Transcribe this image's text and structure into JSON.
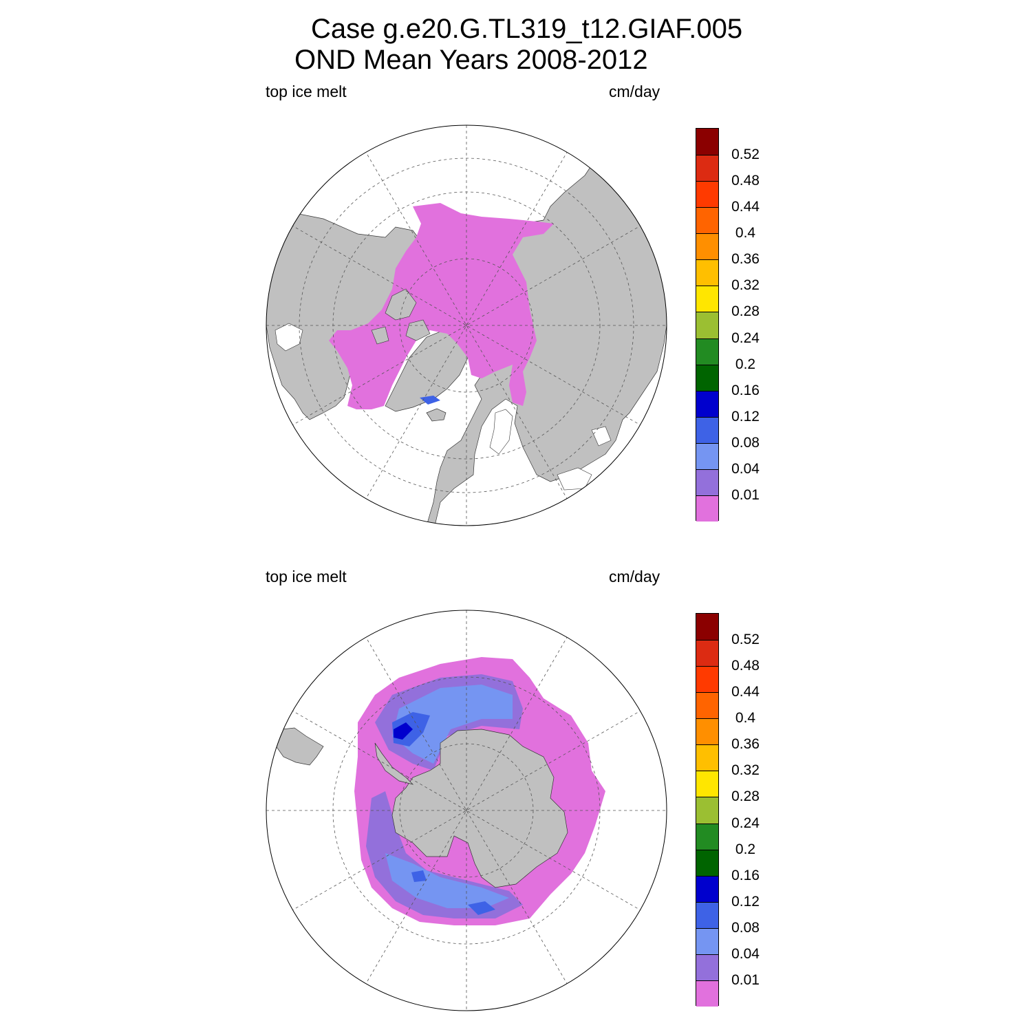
{
  "title": {
    "line1": "Case g.e20.G.TL319_t12.GIAF.005",
    "line2": "OND Mean   Years 2008-2012"
  },
  "panels": [
    {
      "id": "north",
      "left_label": "top ice melt",
      "right_label": "cm/day",
      "hemisphere": "north"
    },
    {
      "id": "south",
      "left_label": "top ice melt",
      "right_label": "cm/day",
      "hemisphere": "south"
    }
  ],
  "colorbar": {
    "labels": [
      "0.52",
      "0.48",
      "0.44",
      "0.4",
      "0.36",
      "0.32",
      "0.28",
      "0.24",
      "0.2",
      "0.16",
      "0.12",
      "0.08",
      "0.04",
      "0.01"
    ],
    "colors": [
      "#8b0000",
      "#dc2b12",
      "#ff3a00",
      "#ff6400",
      "#ff8f00",
      "#ffbf00",
      "#ffe600",
      "#9bbf32",
      "#228b22",
      "#006400",
      "#0000cd",
      "#3e62e6",
      "#7595f2",
      "#9370db",
      "#e171dd"
    ]
  },
  "map_colors": {
    "land": "#c0c0c0",
    "ocean": "#ffffff",
    "ice_low": "#e171dd",
    "ice_004": "#9370db",
    "ice_008": "#7595f2",
    "ice_012": "#3e62e6",
    "ice_016": "#0000cd"
  }
}
